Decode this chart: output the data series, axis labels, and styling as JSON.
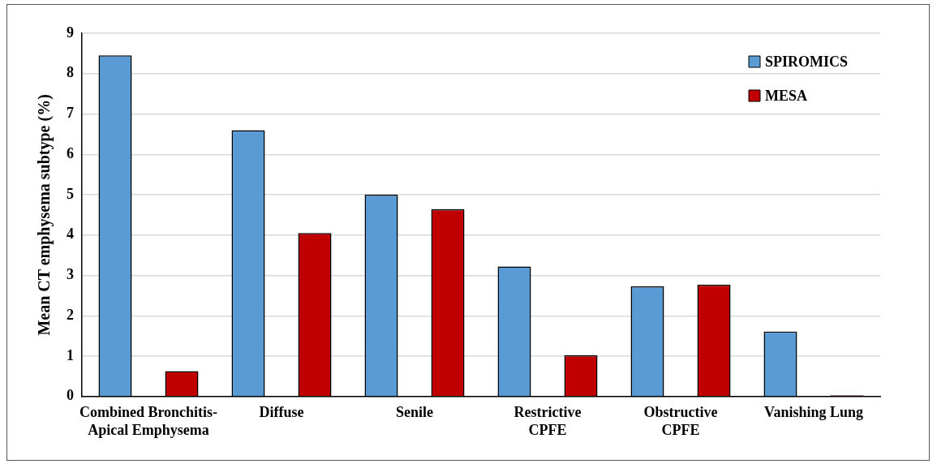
{
  "chart_data": {
    "type": "bar",
    "ylabel": "Mean CT emphysema subtype (%)",
    "categories": [
      "Combined Bronchitis-\nApical Emphysema",
      "Diffuse",
      "Senile",
      "Restrictive\nCPFE",
      "Obstructive\nCPFE",
      "Vanishing Lung"
    ],
    "series": [
      {
        "name": "SPIROMICS",
        "color": "#5b9bd5",
        "values": [
          8.45,
          6.6,
          5.0,
          3.22,
          2.73,
          1.61
        ]
      },
      {
        "name": "MESA",
        "color": "#c00000",
        "values": [
          0.63,
          4.05,
          4.64,
          1.02,
          2.77,
          0.03
        ]
      }
    ],
    "ylim": [
      0,
      9
    ],
    "yticks": [
      0,
      1,
      2,
      3,
      4,
      5,
      6,
      7,
      8,
      9
    ],
    "grid": "y",
    "legend": "top right"
  }
}
